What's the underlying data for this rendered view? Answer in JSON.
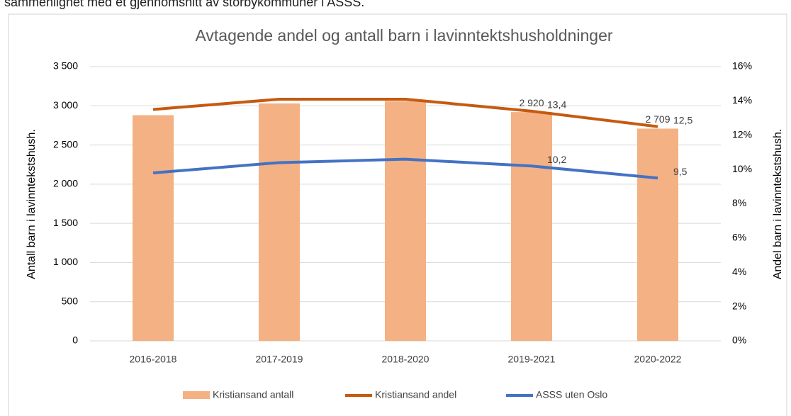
{
  "caption": "sammenlignet med et gjennomsnitt av storbykommuner i ASSS.",
  "chart_data": {
    "type": "bar-line",
    "title": "Avtagende andel og antall barn i lavinntektshusholdninger",
    "ylabel": "Antall barn i lavinntekstshush.",
    "y2label": "Andel barn i lavinntekstshush.",
    "categories": [
      "2016-2018",
      "2017-2019",
      "2018-2020",
      "2019-2021",
      "2020-2022"
    ],
    "series": [
      {
        "name": "Kristiansand antall",
        "color": "#f4b183",
        "kind": "bar",
        "values": [
          2880,
          3030,
          3060,
          2920,
          2709
        ],
        "value_labels": [
          null,
          null,
          null,
          "2 920",
          "2 709"
        ]
      },
      {
        "name": "Kristiansand andel",
        "color": "#c55a11",
        "kind": "line",
        "axis": "y2",
        "values": [
          13.5,
          14.1,
          14.1,
          13.4,
          12.5
        ],
        "value_labels": [
          null,
          null,
          null,
          "13,4",
          "12,5"
        ]
      },
      {
        "name": "ASSS uten Oslo",
        "color": "#4472c4",
        "kind": "line",
        "axis": "y2",
        "values": [
          9.8,
          10.4,
          10.6,
          10.2,
          9.5
        ],
        "value_labels": [
          null,
          null,
          null,
          "10,2",
          "9,5"
        ]
      }
    ],
    "ylim": [
      0,
      3500
    ],
    "yticks": [
      0,
      500,
      {
        "value": 1000,
        "label": "1 000"
      },
      {
        "value": 1500,
        "label": "1 500"
      },
      {
        "value": 2000,
        "label": "2 000"
      },
      {
        "value": 2500,
        "label": "2 500"
      },
      {
        "value": 3000,
        "label": "3 000"
      },
      {
        "value": 3500,
        "label": "3 500"
      }
    ],
    "y2lim": [
      0,
      16
    ],
    "y2ticks": [
      {
        "value": 0,
        "label": "0%"
      },
      {
        "value": 2,
        "label": "2%"
      },
      {
        "value": 4,
        "label": "4%"
      },
      {
        "value": 6,
        "label": "6%"
      },
      {
        "value": 8,
        "label": "8%"
      },
      {
        "value": 10,
        "label": "10%"
      },
      {
        "value": 12,
        "label": "12%"
      },
      {
        "value": 14,
        "label": "14%"
      },
      {
        "value": 16,
        "label": "16%"
      }
    ],
    "grid": true,
    "legend": "bottom"
  }
}
